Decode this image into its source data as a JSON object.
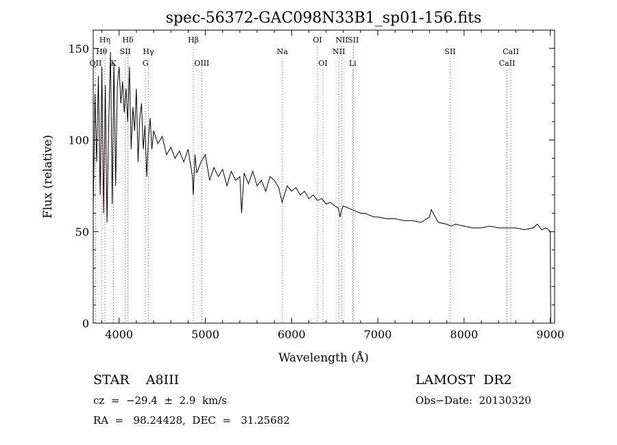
{
  "chart_data": {
    "type": "line",
    "title": "spec-56372-GAC098N33B1_sp01-156.fits",
    "xlabel": "Wavelength (Å)",
    "ylabel": "Flux (relative)",
    "xlim": [
      3700,
      9050
    ],
    "ylim": [
      0,
      160
    ],
    "x_ticks": [
      "4000",
      "5000",
      "6000",
      "7000",
      "8000",
      "9000"
    ],
    "y_ticks": [
      "0",
      "50",
      "100",
      "150"
    ],
    "grid": false,
    "series": [
      {
        "x": [
          3700,
          3720,
          3740,
          3760,
          3780,
          3800,
          3820,
          3840,
          3860,
          3880,
          3900,
          3920,
          3940,
          3960,
          3980,
          4000,
          4020,
          4040,
          4060,
          4080,
          4100,
          4120,
          4140,
          4160,
          4180,
          4200,
          4220,
          4240,
          4260,
          4280,
          4300,
          4320,
          4340,
          4360,
          4380,
          4400,
          4450,
          4500,
          4550,
          4600,
          4650,
          4700,
          4750,
          4800,
          4850,
          4860,
          4880,
          4900,
          4950,
          5000,
          5050,
          5100,
          5150,
          5200,
          5250,
          5300,
          5350,
          5400,
          5420,
          5450,
          5500,
          5550,
          5600,
          5650,
          5700,
          5750,
          5800,
          5850,
          5890,
          5950,
          6000,
          6050,
          6100,
          6150,
          6200,
          6250,
          6300,
          6350,
          6400,
          6450,
          6500,
          6540,
          6563,
          6580,
          6600,
          6650,
          6700,
          6750,
          6800,
          6850,
          6900,
          6950,
          7000,
          7100,
          7200,
          7300,
          7400,
          7500,
          7600,
          7620,
          7700,
          7800,
          7850,
          7900,
          8000,
          8100,
          8200,
          8300,
          8400,
          8500,
          8600,
          8700,
          8800,
          8850,
          8900,
          8950,
          8980,
          9000,
          9005
        ],
        "y": [
          62,
          125,
          88,
          135,
          70,
          140,
          60,
          130,
          55,
          110,
          148,
          65,
          142,
          75,
          130,
          140,
          120,
          132,
          115,
          128,
          110,
          140,
          95,
          118,
          105,
          128,
          88,
          112,
          120,
          95,
          108,
          80,
          100,
          112,
          95,
          105,
          98,
          102,
          92,
          96,
          90,
          94,
          88,
          95,
          80,
          70,
          92,
          82,
          88,
          92,
          78,
          85,
          80,
          84,
          75,
          83,
          78,
          80,
          60,
          82,
          76,
          83,
          75,
          78,
          72,
          80,
          78,
          74,
          66,
          75,
          72,
          74,
          70,
          72,
          68,
          70,
          67,
          68,
          65,
          66,
          64,
          63,
          58,
          62,
          64,
          63,
          62,
          61,
          60,
          60,
          59,
          58,
          58,
          57,
          57,
          56,
          56,
          55,
          58,
          62,
          55,
          54,
          53,
          54,
          53,
          52,
          52,
          53,
          52,
          52,
          52,
          51,
          52,
          54,
          51,
          52,
          51,
          50,
          0
        ]
      }
    ],
    "lines": [
      {
        "name": "Hη",
        "x": 3835,
        "row": 1
      },
      {
        "name": "Hθ",
        "x": 3797,
        "row": 2
      },
      {
        "name": "OII",
        "x": 3727,
        "row": 3
      },
      {
        "name": "K",
        "x": 3934,
        "row": 3
      },
      {
        "name": "Hδ",
        "x": 4102,
        "row": 1
      },
      {
        "name": "SII",
        "x": 4072,
        "row": 2
      },
      {
        "name": "Hγ",
        "x": 4340,
        "row": 2
      },
      {
        "name": "G",
        "x": 4305,
        "row": 3
      },
      {
        "name": "Hβ",
        "x": 4861,
        "row": 1
      },
      {
        "name": "OIII",
        "x": 4959,
        "row": 3
      },
      {
        "name": "Na",
        "x": 5893,
        "row": 2
      },
      {
        "name": "OI",
        "x": 6300,
        "row": 1
      },
      {
        "name": "OI",
        "x": 6364,
        "row": 3
      },
      {
        "name": "NII",
        "x": 6583,
        "row": 1
      },
      {
        "name": "SII",
        "x": 6716,
        "row": 1
      },
      {
        "name": "NII",
        "x": 6548,
        "row": 2
      },
      {
        "name": "Li",
        "x": 6708,
        "row": 3
      },
      {
        "name": "SII",
        "x": 7838,
        "row": 2
      },
      {
        "name": "CaII",
        "x": 8542,
        "row": 2
      },
      {
        "name": "CaII",
        "x": 8498,
        "row": 3
      }
    ]
  },
  "info": {
    "class_text": "STAR    A8III",
    "survey": "LAMOST  DR2",
    "cz": "cz  =  −29.4  ±  2.9  km/s",
    "obs_date": "Obs−Date:  20130320",
    "coords": "RA  =   98.24428,  DEC  =   31.25682"
  }
}
